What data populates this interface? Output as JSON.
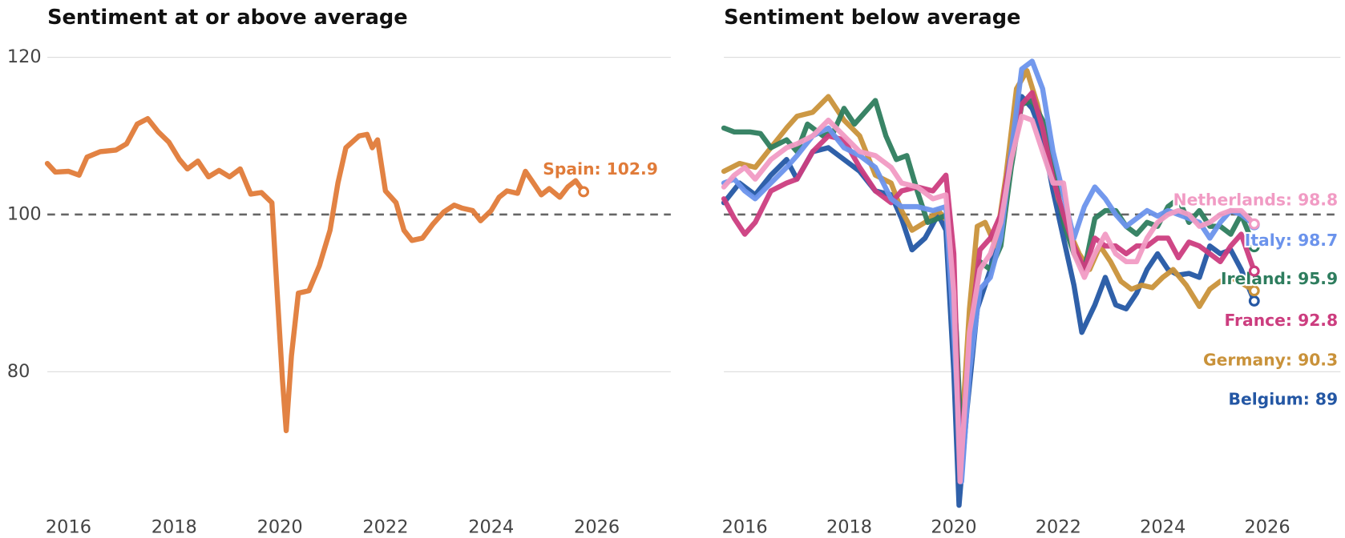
{
  "chart_data": [
    {
      "type": "line",
      "title": "Sentiment at or above average",
      "xlim": [
        2015.6,
        2027.4
      ],
      "xticks": [
        2016,
        2018,
        2020,
        2022,
        2024,
        2026
      ],
      "ylim": [
        62,
        120
      ],
      "yticks": [
        80,
        100,
        120
      ],
      "hline": 100,
      "grid": true,
      "series": [
        {
          "name": "Spain",
          "color": "#e07b39",
          "end_label": "Spain: 102.9",
          "x": [
            2015.6,
            2015.75,
            2016.0,
            2016.2,
            2016.35,
            2016.6,
            2016.9,
            2017.1,
            2017.3,
            2017.5,
            2017.7,
            2017.9,
            2018.1,
            2018.25,
            2018.45,
            2018.65,
            2018.85,
            2019.05,
            2019.25,
            2019.45,
            2019.65,
            2019.85,
            2019.95,
            2020.05,
            2020.12,
            2020.22,
            2020.35,
            2020.55,
            2020.75,
            2020.95,
            2021.1,
            2021.25,
            2021.5,
            2021.65,
            2021.75,
            2021.85,
            2022.0,
            2022.2,
            2022.35,
            2022.5,
            2022.7,
            2022.9,
            2023.1,
            2023.3,
            2023.45,
            2023.65,
            2023.8,
            2024.0,
            2024.15,
            2024.3,
            2024.5,
            2024.65,
            2024.8,
            2024.95,
            2025.1,
            2025.3,
            2025.45,
            2025.6,
            2025.75
          ],
          "values": [
            106.5,
            105.4,
            105.5,
            105,
            107.3,
            108,
            108.2,
            109,
            111.5,
            112.2,
            110.5,
            109.2,
            107,
            105.8,
            106.8,
            104.8,
            105.6,
            104.8,
            105.8,
            102.6,
            102.8,
            101.5,
            90,
            79,
            72.5,
            82,
            90,
            90.3,
            93.5,
            98,
            104,
            108.5,
            110,
            110.2,
            108.5,
            109.5,
            103,
            101.5,
            98,
            96.7,
            97,
            98.8,
            100.3,
            101.2,
            100.8,
            100.5,
            99.2,
            100.5,
            102.2,
            103,
            102.7,
            105.5,
            104,
            102.5,
            103.3,
            102.2,
            103.5,
            104.3,
            102.9
          ]
        }
      ]
    },
    {
      "type": "line",
      "title": "Sentiment below average",
      "xlim": [
        2015.6,
        2027.4
      ],
      "xticks": [
        2016,
        2018,
        2020,
        2022,
        2024,
        2026
      ],
      "ylim": [
        62,
        120
      ],
      "hline": 100,
      "grid": true,
      "series": [
        {
          "name": "Belgium",
          "color": "#2457a4",
          "end_label": "Belgium: 89",
          "x": [
            2015.6,
            2015.9,
            2016.2,
            2016.5,
            2016.8,
            2017.0,
            2017.3,
            2017.6,
            2017.9,
            2018.2,
            2018.5,
            2018.8,
            2019.0,
            2019.2,
            2019.45,
            2019.7,
            2019.85,
            2020.0,
            2020.1,
            2020.25,
            2020.45,
            2020.7,
            2020.9,
            2021.1,
            2021.3,
            2021.5,
            2021.7,
            2021.9,
            2022.1,
            2022.3,
            2022.45,
            2022.7,
            2022.9,
            2023.1,
            2023.3,
            2023.5,
            2023.7,
            2023.9,
            2024.1,
            2024.3,
            2024.5,
            2024.7,
            2024.9,
            2025.1,
            2025.3,
            2025.5,
            2025.75
          ],
          "values": [
            101.5,
            104,
            102.5,
            105,
            107,
            104.5,
            108,
            108.5,
            107,
            105.5,
            103,
            102.5,
            99.5,
            95.5,
            97,
            100,
            98,
            80,
            63,
            75,
            88,
            93,
            100,
            108,
            115,
            113.5,
            110,
            103,
            97,
            91,
            85,
            88.5,
            92,
            88.5,
            88,
            90,
            93,
            95,
            93,
            92.3,
            92.5,
            92,
            96,
            95,
            95.5,
            93,
            89
          ]
        },
        {
          "name": "Germany",
          "color": "#c9923a",
          "end_label": "Germany: 90.3",
          "x": [
            2015.6,
            2015.9,
            2016.2,
            2016.5,
            2016.8,
            2017.0,
            2017.3,
            2017.6,
            2017.9,
            2018.2,
            2018.5,
            2018.8,
            2019.0,
            2019.2,
            2019.45,
            2019.7,
            2019.9,
            2020.05,
            2020.15,
            2020.3,
            2020.45,
            2020.6,
            2020.8,
            2021.0,
            2021.2,
            2021.4,
            2021.6,
            2021.8,
            2022.0,
            2022.2,
            2022.4,
            2022.6,
            2022.8,
            2023.0,
            2023.2,
            2023.4,
            2023.6,
            2023.8,
            2024.0,
            2024.2,
            2024.45,
            2024.7,
            2024.9,
            2025.1,
            2025.3,
            2025.5,
            2025.75
          ],
          "values": [
            105.5,
            106.5,
            106,
            108.5,
            111,
            112.5,
            113,
            115,
            112,
            110,
            105,
            104,
            100.5,
            98,
            99,
            100.5,
            99,
            80,
            72,
            88,
            98.5,
            99,
            96,
            105,
            116,
            118.3,
            114,
            108,
            102,
            98,
            95,
            93,
            96,
            94,
            91.5,
            90.5,
            91,
            90.7,
            92,
            93,
            91,
            88.3,
            90.5,
            91.5,
            92,
            91.3,
            90.3
          ]
        },
        {
          "name": "Ireland",
          "color": "#2e7d5e",
          "end_label": "Ireland: 95.9",
          "x": [
            2015.6,
            2015.8,
            2016.1,
            2016.3,
            2016.5,
            2016.8,
            2017.0,
            2017.2,
            2017.5,
            2017.7,
            2017.9,
            2018.1,
            2018.3,
            2018.5,
            2018.7,
            2018.9,
            2019.1,
            2019.3,
            2019.5,
            2019.7,
            2019.9,
            2020.05,
            2020.15,
            2020.3,
            2020.5,
            2020.7,
            2020.9,
            2021.1,
            2021.3,
            2021.5,
            2021.7,
            2021.9,
            2022.1,
            2022.3,
            2022.5,
            2022.7,
            2022.9,
            2023.1,
            2023.3,
            2023.5,
            2023.7,
            2023.9,
            2024.1,
            2024.3,
            2024.5,
            2024.7,
            2024.9,
            2025.1,
            2025.3,
            2025.5,
            2025.75
          ],
          "values": [
            111,
            110.5,
            110.5,
            110.3,
            108.5,
            109.5,
            108,
            111.5,
            110,
            110.5,
            113.5,
            111.5,
            113,
            114.5,
            110,
            107,
            107.5,
            103,
            99,
            99.5,
            100,
            85,
            70,
            83,
            94,
            93,
            96,
            106,
            114,
            114.5,
            112,
            106,
            99,
            95,
            93,
            99.5,
            100.5,
            100.5,
            98.5,
            97.5,
            99,
            98.5,
            101,
            102,
            99,
            100.5,
            98.5,
            98.5,
            97.5,
            100,
            95.9
          ]
        },
        {
          "name": "France",
          "color": "#cc3d7f",
          "end_label": "France: 92.8",
          "x": [
            2015.6,
            2015.8,
            2016.0,
            2016.2,
            2016.5,
            2016.8,
            2017.0,
            2017.3,
            2017.6,
            2017.9,
            2018.2,
            2018.5,
            2018.8,
            2019.0,
            2019.3,
            2019.6,
            2019.85,
            2020.0,
            2020.12,
            2020.3,
            2020.5,
            2020.7,
            2020.9,
            2021.1,
            2021.3,
            2021.5,
            2021.7,
            2021.9,
            2022.1,
            2022.3,
            2022.5,
            2022.7,
            2022.9,
            2023.1,
            2023.3,
            2023.5,
            2023.7,
            2023.9,
            2024.1,
            2024.3,
            2024.5,
            2024.7,
            2024.9,
            2025.1,
            2025.3,
            2025.5,
            2025.75
          ],
          "values": [
            102,
            99.5,
            97.5,
            99,
            103,
            104,
            104.5,
            108,
            110,
            109.5,
            106,
            103,
            101.5,
            103,
            103.5,
            103,
            105,
            95,
            68,
            84,
            95.5,
            97,
            100,
            108,
            114,
            115.5,
            111,
            104.5,
            100,
            96,
            93,
            97,
            96,
            96,
            95,
            96,
            96,
            97,
            97,
            94.5,
            96.5,
            96,
            95,
            94,
            96,
            97.5,
            92.8
          ]
        },
        {
          "name": "Italy",
          "color": "#6b93ec",
          "end_label": "Italy: 98.7",
          "x": [
            2015.6,
            2015.8,
            2016.0,
            2016.2,
            2016.5,
            2016.8,
            2017.0,
            2017.3,
            2017.6,
            2017.9,
            2018.2,
            2018.5,
            2018.8,
            2019.0,
            2019.3,
            2019.6,
            2019.85,
            2020.0,
            2020.15,
            2020.3,
            2020.5,
            2020.7,
            2020.9,
            2021.1,
            2021.3,
            2021.5,
            2021.7,
            2021.9,
            2022.1,
            2022.3,
            2022.5,
            2022.7,
            2022.9,
            2023.1,
            2023.3,
            2023.5,
            2023.7,
            2023.9,
            2024.1,
            2024.3,
            2024.5,
            2024.7,
            2024.9,
            2025.1,
            2025.3,
            2025.5,
            2025.75
          ],
          "values": [
            104,
            104.5,
            103,
            102,
            104,
            106,
            107.5,
            110,
            111,
            108.5,
            107.5,
            106,
            102,
            101,
            101,
            100.5,
            101,
            85,
            66,
            80,
            90.5,
            92,
            97,
            108,
            118.5,
            119.5,
            116,
            108,
            102.5,
            97,
            101,
            103.5,
            102,
            100,
            98.5,
            99.5,
            100.5,
            99.8,
            100.5,
            100,
            99.5,
            99,
            97,
            99,
            100.5,
            100,
            98.7
          ]
        },
        {
          "name": "Netherlands",
          "color": "#f19bc4",
          "end_label": "Netherlands: 98.8",
          "x": [
            2015.6,
            2015.8,
            2016.0,
            2016.2,
            2016.5,
            2016.8,
            2017.0,
            2017.3,
            2017.6,
            2017.9,
            2018.2,
            2018.5,
            2018.8,
            2019.0,
            2019.3,
            2019.6,
            2019.85,
            2020.0,
            2020.12,
            2020.3,
            2020.5,
            2020.7,
            2020.9,
            2021.1,
            2021.3,
            2021.5,
            2021.7,
            2021.9,
            2022.1,
            2022.3,
            2022.5,
            2022.7,
            2022.9,
            2023.1,
            2023.3,
            2023.5,
            2023.7,
            2023.9,
            2024.1,
            2024.3,
            2024.5,
            2024.7,
            2024.9,
            2025.1,
            2025.3,
            2025.5,
            2025.75
          ],
          "values": [
            103.5,
            105,
            106,
            104.5,
            107,
            108.5,
            109,
            110,
            112,
            110,
            108,
            107.5,
            106,
            104,
            103.5,
            102,
            102.5,
            90,
            66,
            85,
            93,
            95,
            99,
            107,
            112.5,
            112,
            108,
            104,
            104,
            95,
            92,
            95,
            97.5,
            95,
            94,
            94,
            97,
            99,
            100,
            100.5,
            100,
            98.5,
            99,
            100,
            100.5,
            100.5,
            98.8
          ]
        }
      ]
    }
  ]
}
